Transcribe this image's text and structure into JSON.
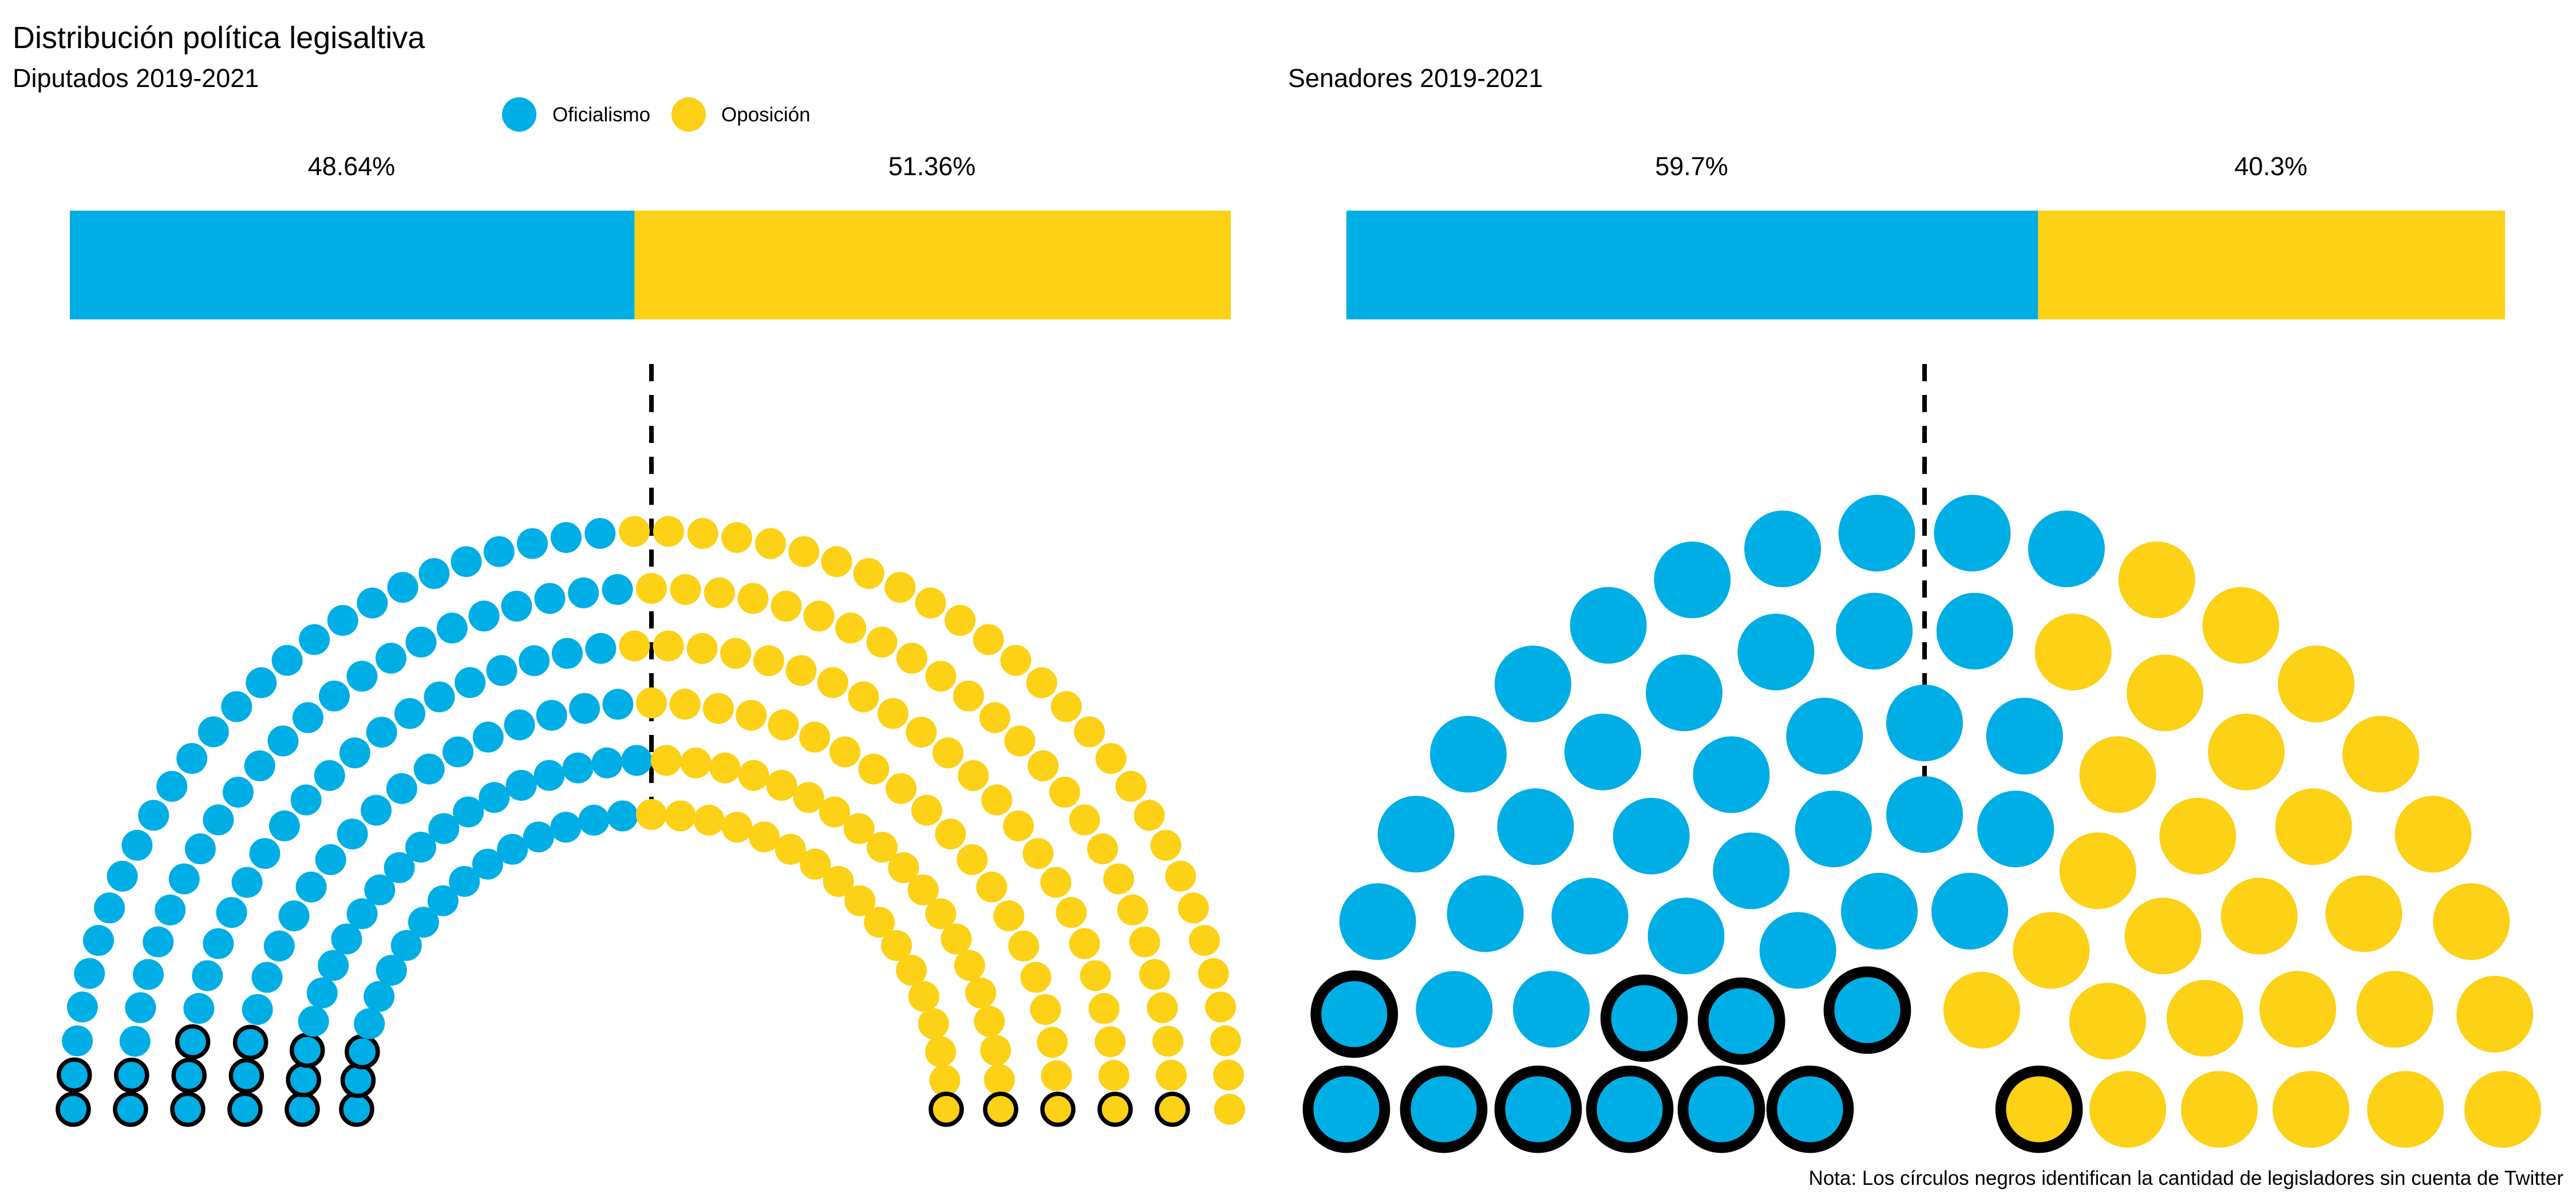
{
  "title": "Distribución política legisaltiva",
  "note": "Nota: Los círculos negros identifican la cantidad de legisladores sin cuenta de Twitter",
  "legend": [
    {
      "label": "Oficialismo",
      "color": "#00AEE6"
    },
    {
      "label": "Oposición",
      "color": "#FCD116"
    }
  ],
  "colors": {
    "oficialismo": "#00AEE6",
    "oposicion": "#FCD116",
    "outline": "#000000"
  },
  "chart_data": [
    {
      "type": "parliament",
      "subtitle": "Diputados 2019-2021",
      "total_seats": 257,
      "categories": [
        "Oficialismo",
        "Oposición"
      ],
      "seats": [
        125,
        132
      ],
      "shares_label": [
        "48.64%",
        "51.36%"
      ],
      "shares": [
        48.64,
        51.36
      ],
      "without_twitter": {
        "Oficialismo": 16,
        "Oposición": 5
      }
    },
    {
      "type": "parliament",
      "subtitle": "Senadores 2019-2021",
      "total_seats": 72,
      "categories": [
        "Oficialismo",
        "Oposición"
      ],
      "seats": [
        43,
        29
      ],
      "shares_label": [
        "59.7%",
        "40.3%"
      ],
      "shares": [
        59.7,
        40.3
      ],
      "without_twitter": {
        "Oficialismo": 10,
        "Oposición": 1
      }
    }
  ]
}
